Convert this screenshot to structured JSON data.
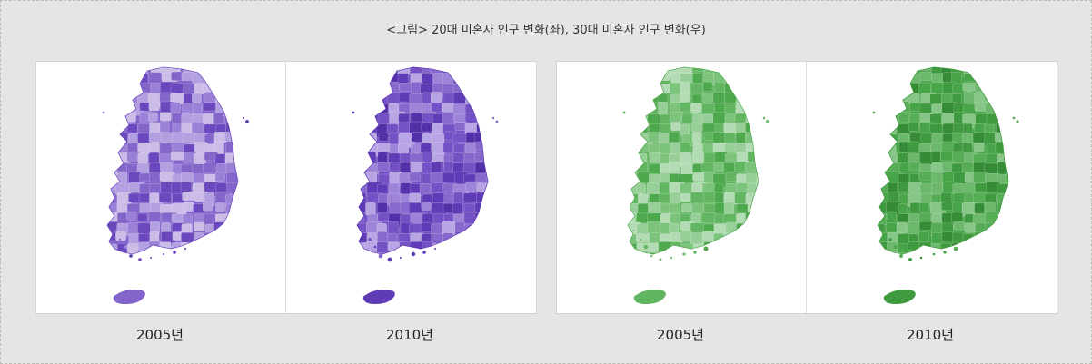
{
  "caption": "<그림> 20대 미혼자 인구 변화(좌), 30대 미혼자 인구 변화(우)",
  "panels": [
    {
      "year": "2005년",
      "palette": [
        "#cbbde8",
        "#b3a0e0",
        "#9a80d6",
        "#8466cb",
        "#6c48bf",
        "#5c36b0"
      ],
      "level": 0.45
    },
    {
      "year": "2010년",
      "palette": [
        "#b8a6e4",
        "#9d84d8",
        "#8768cd",
        "#7451c4",
        "#5f3bb6",
        "#5330a8"
      ],
      "level": 0.65
    },
    {
      "year": "2005년",
      "palette": [
        "#b4dcb4",
        "#98cf98",
        "#7cc37c",
        "#62b662",
        "#4ea84e",
        "#3d983d"
      ],
      "level": 0.45
    },
    {
      "year": "2010년",
      "palette": [
        "#86c686",
        "#6cb86c",
        "#56ad56",
        "#48a448",
        "#3f9a3f",
        "#368c36"
      ],
      "level": 0.85
    }
  ]
}
